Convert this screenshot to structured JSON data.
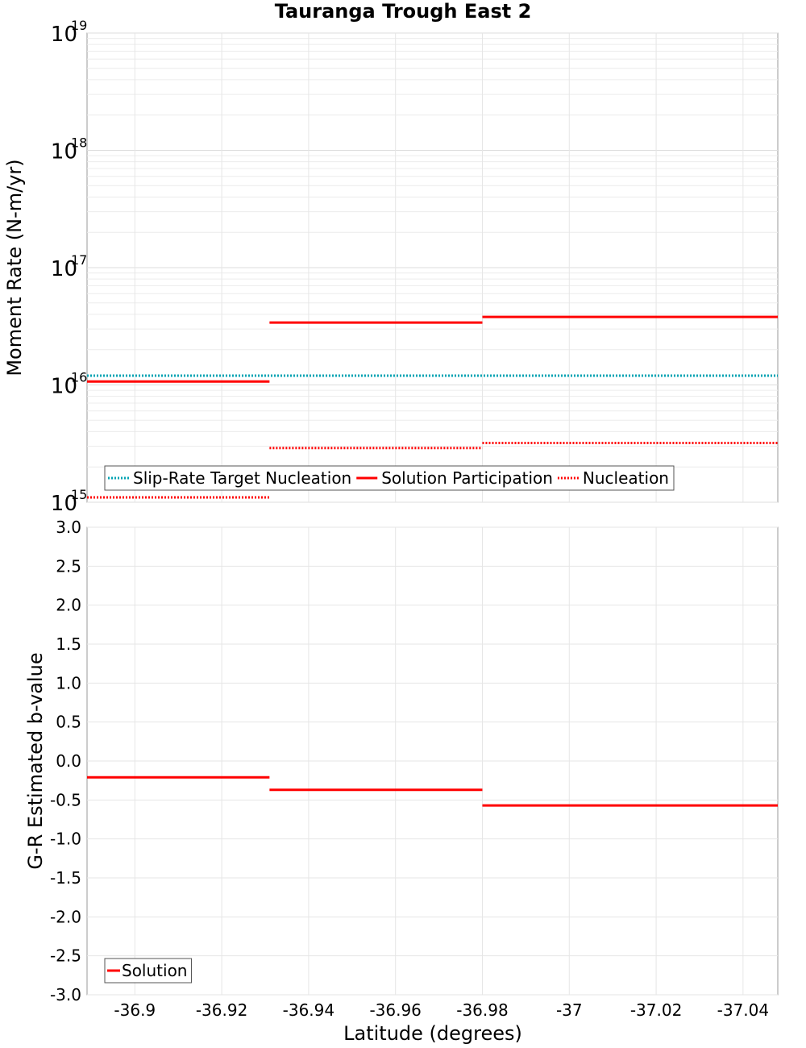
{
  "chart_data": [
    {
      "type": "line",
      "title": "Tauranga Trough East 2",
      "ylabel": "Moment Rate (N-m/yr)",
      "xlabel": "",
      "yscale": "log",
      "xlim": [
        -36.889,
        -37.048
      ],
      "ylim": [
        1000000000000000.0,
        1e+19
      ],
      "y_tick_exponents": [
        "15",
        "16",
        "17",
        "18",
        "19"
      ],
      "y_tick_base": "10",
      "legend_position": "bottom-left",
      "series": [
        {
          "name": "Slip-Rate Target Nucleation",
          "style": "dotted",
          "color": "#00a3b3",
          "segments": [
            {
              "x0": -36.889,
              "x1": -37.048,
              "y": 1.2e+16
            }
          ]
        },
        {
          "name": "Solution Participation",
          "style": "solid",
          "color": "#ff0000",
          "segments": [
            {
              "x0": -36.889,
              "x1": -36.931,
              "y": 1.07e+16
            },
            {
              "x0": -36.931,
              "x1": -36.98,
              "y": 3.4e+16
            },
            {
              "x0": -36.98,
              "x1": -37.048,
              "y": 3.8e+16
            }
          ]
        },
        {
          "name": "Nucleation",
          "style": "dotted",
          "color": "#ff0000",
          "segments": [
            {
              "x0": -36.889,
              "x1": -36.931,
              "y": 1100000000000000.0
            },
            {
              "x0": -36.931,
              "x1": -36.98,
              "y": 2900000000000000.0
            },
            {
              "x0": -36.98,
              "x1": -37.048,
              "y": 3200000000000000.0
            }
          ]
        }
      ]
    },
    {
      "type": "line",
      "title": "",
      "ylabel": "G-R Estimated b-value",
      "xlabel": "Latitude (degrees)",
      "xlim": [
        -36.889,
        -37.048
      ],
      "ylim": [
        -3.0,
        3.0
      ],
      "x_ticks": [
        -36.9,
        -36.92,
        -36.94,
        -36.96,
        -36.98,
        -37.0,
        -37.02,
        -37.04
      ],
      "x_tick_labels": [
        "-36.9",
        "-36.92",
        "-36.94",
        "-36.96",
        "-36.98",
        "-37",
        "-37.02",
        "-37.04"
      ],
      "y_ticks": [
        3.0,
        2.5,
        2.0,
        1.5,
        1.0,
        0.5,
        0.0,
        -0.5,
        -1.0,
        -1.5,
        -2.0,
        -2.5,
        -3.0
      ],
      "y_tick_labels": [
        "3.0",
        "2.5",
        "2.0",
        "1.5",
        "1.0",
        "0.5",
        "0.0",
        "-0.5",
        "-1.0",
        "-1.5",
        "-2.0",
        "-2.5",
        "-3.0"
      ],
      "legend_position": "bottom-left",
      "series": [
        {
          "name": "Solution",
          "style": "solid",
          "color": "#ff0000",
          "segments": [
            {
              "x0": -36.889,
              "x1": -36.931,
              "y": -0.21
            },
            {
              "x0": -36.931,
              "x1": -36.98,
              "y": -0.37
            },
            {
              "x0": -36.98,
              "x1": -37.048,
              "y": -0.57
            }
          ]
        }
      ]
    }
  ]
}
